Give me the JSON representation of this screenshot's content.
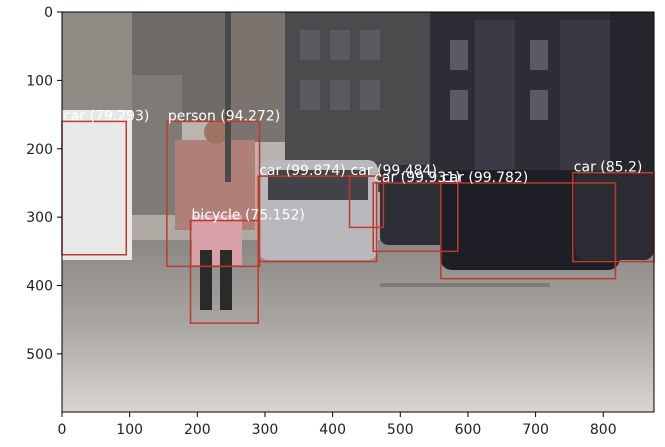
{
  "plot": {
    "x_ticks": [
      "0",
      "100",
      "200",
      "300",
      "400",
      "500",
      "600",
      "700",
      "800"
    ],
    "y_ticks": [
      "0",
      "100",
      "200",
      "300",
      "400",
      "500"
    ],
    "x_tick_values": [
      0,
      100,
      200,
      300,
      400,
      500,
      600,
      700,
      800
    ],
    "y_tick_values": [
      0,
      100,
      200,
      300,
      400,
      500
    ],
    "xlim": [
      0,
      875
    ],
    "ylim": [
      585,
      0
    ]
  },
  "detections": [
    {
      "label": "car (79.293)",
      "x1": 0,
      "y1": 160,
      "x2": 95,
      "y2": 355,
      "color": "#c0392b"
    },
    {
      "label": "person (94.272)",
      "x1": 155,
      "y1": 160,
      "x2": 292,
      "y2": 372,
      "color": "#c0392b"
    },
    {
      "label": "car (99.874)",
      "x1": 290,
      "y1": 240,
      "x2": 465,
      "y2": 365,
      "color": "#c0392b"
    },
    {
      "label": "car (99.484)",
      "x1": 425,
      "y1": 240,
      "x2": 475,
      "y2": 315,
      "color": "#c0392b"
    },
    {
      "label": "car (99.931)",
      "x1": 460,
      "y1": 250,
      "x2": 585,
      "y2": 350,
      "color": "#c0392b"
    },
    {
      "label": "car (99.782)",
      "x1": 560,
      "y1": 250,
      "x2": 818,
      "y2": 390,
      "color": "#c0392b"
    },
    {
      "label": "car (85.2)",
      "x1": 755,
      "y1": 235,
      "x2": 875,
      "y2": 365,
      "color": "#c0392b"
    },
    {
      "label": "bicycle (75.152)",
      "x1": 190,
      "y1": 305,
      "x2": 290,
      "y2": 455,
      "color": "#c0392b"
    }
  ]
}
